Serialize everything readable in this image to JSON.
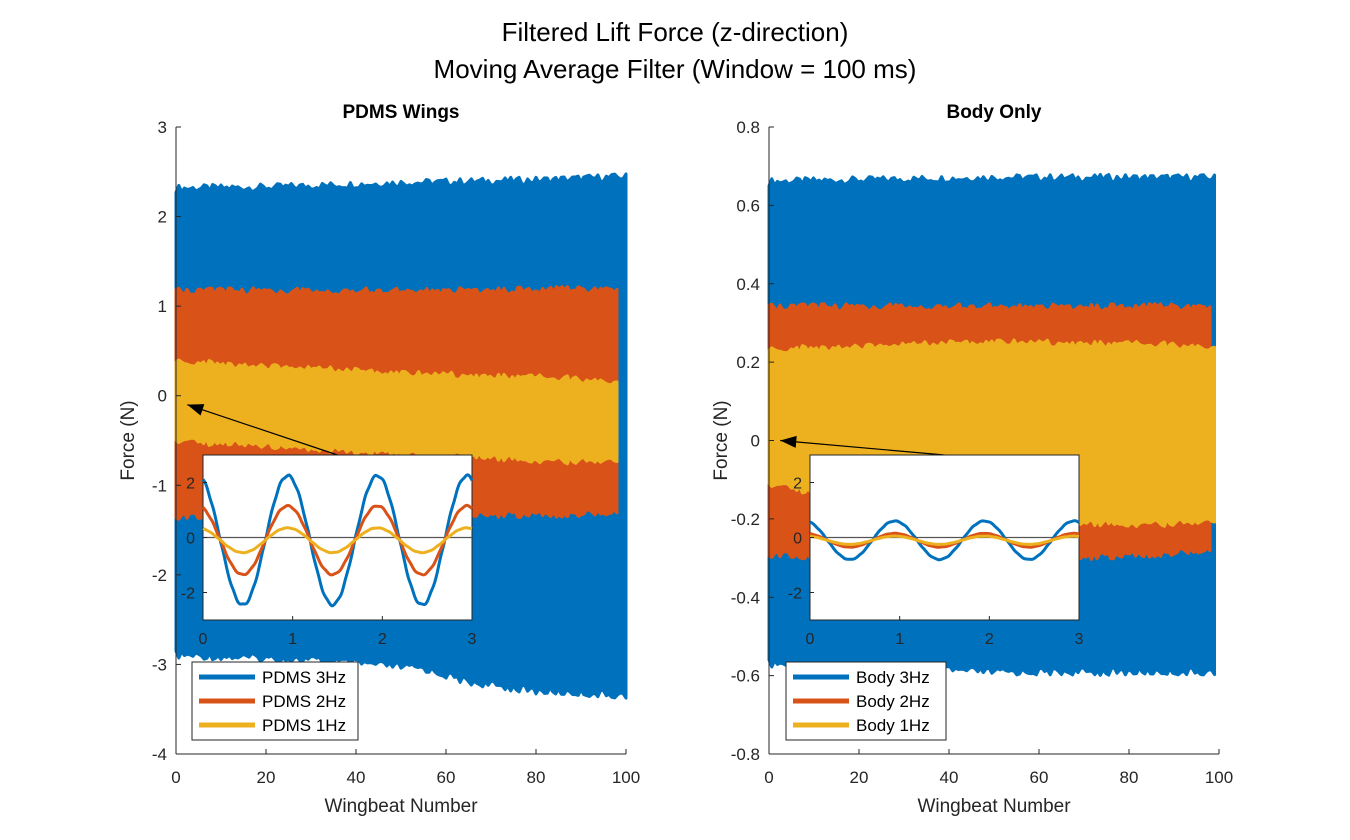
{
  "figure": {
    "title_line1": "Filtered Lift Force (z-direction)",
    "title_line2": "Moving Average Filter (Window = 100 ms)"
  },
  "colors": {
    "series1": "#0072BD",
    "series2": "#D95319",
    "series3": "#EDB120"
  },
  "chart_data": [
    {
      "type": "line",
      "title": "PDMS Wings",
      "xlabel": "Wingbeat Number",
      "ylabel": "Force (N)",
      "xlim": [
        0,
        100
      ],
      "ylim": [
        -4,
        3
      ],
      "xticks": [
        0,
        20,
        40,
        60,
        80,
        100
      ],
      "yticks": [
        -4,
        -3,
        -2,
        -1,
        0,
        1,
        2,
        3
      ],
      "legend_position": "bottom-left",
      "series": [
        {
          "name": "PDMS 3Hz",
          "x_end": 100,
          "upper": [
            [
              0,
              2.27
            ],
            [
              20,
              2.28
            ],
            [
              50,
              2.33
            ],
            [
              80,
              2.36
            ],
            [
              100,
              2.4
            ]
          ],
          "lower": [
            [
              0,
              -2.85
            ],
            [
              30,
              -2.9
            ],
            [
              55,
              -3.0
            ],
            [
              65,
              -3.15
            ],
            [
              80,
              -3.25
            ],
            [
              100,
              -3.3
            ]
          ]
        },
        {
          "name": "PDMS 2Hz",
          "x_end": 98,
          "upper": [
            [
              0,
              1.12
            ],
            [
              50,
              1.12
            ],
            [
              98,
              1.14
            ]
          ],
          "lower": [
            [
              0,
              -1.3
            ],
            [
              50,
              -1.3
            ],
            [
              98,
              -1.26
            ]
          ]
        },
        {
          "name": "PDMS 1Hz",
          "x_end": 98,
          "upper": [
            [
              0,
              0.33
            ],
            [
              50,
              0.2
            ],
            [
              98,
              0.12
            ]
          ],
          "lower": [
            [
              0,
              -0.45
            ],
            [
              50,
              -0.6
            ],
            [
              98,
              -0.7
            ]
          ]
        }
      ],
      "inset": {
        "xlim": [
          0,
          3
        ],
        "ylim": [
          -3,
          3
        ],
        "xticks": [
          0,
          1,
          2,
          3
        ],
        "yticks": [
          -2,
          0,
          2
        ],
        "arrow_target": [
          2.5,
          -0.1
        ],
        "series": [
          {
            "name": "PDMS 3Hz",
            "amplitude": 2.35,
            "offset": -0.1,
            "frequency": 1
          },
          {
            "name": "PDMS 2Hz",
            "amplitude": 1.25,
            "offset": -0.1,
            "frequency": 1
          },
          {
            "name": "PDMS 1Hz",
            "amplitude": 0.45,
            "offset": -0.1,
            "frequency": 1
          }
        ]
      }
    },
    {
      "type": "line",
      "title": "Body Only",
      "xlabel": "Wingbeat Number",
      "ylabel": "Force (N)",
      "xlim": [
        0,
        100
      ],
      "ylim": [
        -0.8,
        0.8
      ],
      "xticks": [
        0,
        20,
        40,
        60,
        80,
        100
      ],
      "yticks": [
        -0.8,
        -0.6,
        -0.4,
        -0.2,
        0,
        0.2,
        0.4,
        0.6,
        0.8
      ],
      "legend_position": "bottom-left",
      "series": [
        {
          "name": "Body 3Hz",
          "x_end": 99,
          "upper": [
            [
              0,
              0.65
            ],
            [
              50,
              0.66
            ],
            [
              99,
              0.66
            ]
          ],
          "lower": [
            [
              0,
              -0.56
            ],
            [
              50,
              -0.58
            ],
            [
              99,
              -0.58
            ]
          ]
        },
        {
          "name": "Body 2Hz",
          "x_end": 98,
          "upper": [
            [
              0,
              0.33
            ],
            [
              50,
              0.33
            ],
            [
              98,
              0.33
            ]
          ],
          "lower": [
            [
              0,
              -0.28
            ],
            [
              50,
              -0.3
            ],
            [
              98,
              -0.27
            ]
          ]
        },
        {
          "name": "Body 1Hz",
          "x_end": 99,
          "upper": [
            [
              0,
              0.22
            ],
            [
              50,
              0.24
            ],
            [
              99,
              0.23
            ]
          ],
          "lower": [
            [
              0,
              -0.1
            ],
            [
              50,
              -0.2
            ],
            [
              99,
              -0.2
            ]
          ]
        }
      ],
      "inset": {
        "xlim": [
          0,
          3
        ],
        "ylim": [
          -3,
          3
        ],
        "xticks": [
          0,
          1,
          2,
          3
        ],
        "yticks": [
          -2,
          0,
          2
        ],
        "arrow_target": [
          2.5,
          0.0
        ],
        "series": [
          {
            "name": "Body 3Hz",
            "amplitude": 0.7,
            "offset": -0.1,
            "frequency": 1
          },
          {
            "name": "Body 2Hz",
            "amplitude": 0.25,
            "offset": -0.1,
            "frequency": 1
          },
          {
            "name": "Body 1Hz",
            "amplitude": 0.15,
            "offset": -0.1,
            "frequency": 1
          }
        ]
      }
    }
  ]
}
